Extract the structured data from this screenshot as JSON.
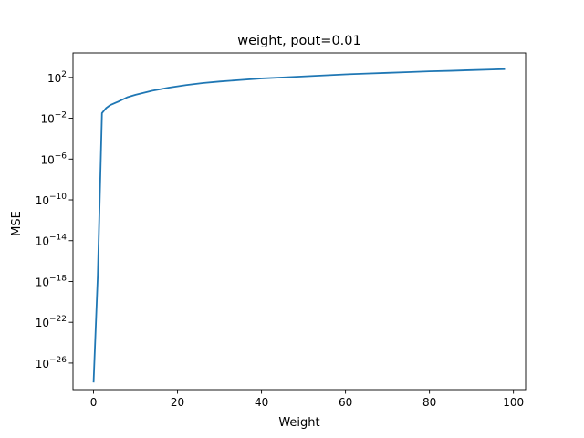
{
  "chart_data": {
    "type": "line",
    "title": "weight, pout=0.01",
    "xlabel": "Weight",
    "ylabel": "MSE",
    "xlim": [
      -4.9,
      102.9
    ],
    "ylim_exponent": [
      -28.6,
      4.4
    ],
    "yscale": "log",
    "grid": false,
    "line_color": "#1f77b4",
    "x_ticks": [
      {
        "value": 0,
        "label": "0"
      },
      {
        "value": 20,
        "label": "20"
      },
      {
        "value": 40,
        "label": "40"
      },
      {
        "value": 60,
        "label": "60"
      },
      {
        "value": 80,
        "label": "80"
      },
      {
        "value": 100,
        "label": "100"
      }
    ],
    "y_ticks": [
      {
        "exp": 2,
        "base": "10",
        "sup": "2"
      },
      {
        "exp": -2,
        "base": "10",
        "sup": "−2"
      },
      {
        "exp": -6,
        "base": "10",
        "sup": "−6"
      },
      {
        "exp": -10,
        "base": "10",
        "sup": "−10"
      },
      {
        "exp": -14,
        "base": "10",
        "sup": "−14"
      },
      {
        "exp": -18,
        "base": "10",
        "sup": "−18"
      },
      {
        "exp": -22,
        "base": "10",
        "sup": "−22"
      },
      {
        "exp": -26,
        "base": "10",
        "sup": "−26"
      }
    ],
    "series": [
      {
        "x": [
          0,
          1,
          2,
          3,
          4,
          6,
          8,
          10,
          14,
          18,
          22,
          26,
          30,
          35,
          40,
          45,
          50,
          55,
          60,
          65,
          70,
          75,
          80,
          85,
          90,
          95,
          98
        ],
        "log10_y": [
          -27.9,
          -17.5,
          -1.5,
          -1.0,
          -0.7,
          -0.35,
          0.05,
          0.3,
          0.7,
          1.0,
          1.25,
          1.45,
          1.6,
          1.75,
          1.9,
          2.0,
          2.1,
          2.2,
          2.3,
          2.38,
          2.45,
          2.52,
          2.6,
          2.65,
          2.72,
          2.78,
          2.82
        ]
      }
    ]
  }
}
